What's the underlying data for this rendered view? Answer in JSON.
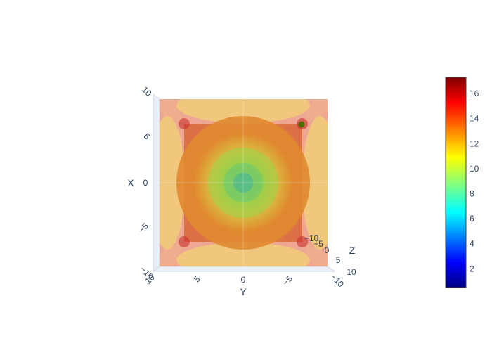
{
  "chart_data": {
    "type": "volume",
    "description_scene": "3D isosurface/volume view, camera looking along Y axis",
    "x_axis": {
      "title": "X",
      "ticks": [
        -10,
        -5,
        0,
        5,
        10
      ],
      "tick_labels": [
        "−10",
        "−5",
        "0",
        "5",
        "10"
      ],
      "range": [
        -10,
        10
      ]
    },
    "y_axis": {
      "title": "Y",
      "ticks": [
        10,
        5,
        0,
        -5,
        -10
      ],
      "tick_labels": [
        "10",
        "5",
        "0",
        "−5",
        "−10"
      ],
      "range": [
        -10,
        10
      ]
    },
    "z_axis": {
      "title": "Z",
      "ticks": [
        -10,
        -5,
        0,
        5,
        10
      ],
      "tick_labels": [
        "−10",
        "−5",
        "0",
        "5",
        "10"
      ],
      "range": [
        -10,
        10
      ]
    },
    "colorbar": {
      "colorscale": "Jet",
      "range": [
        0.5,
        17.3
      ],
      "ticks": [
        2,
        4,
        6,
        8,
        10,
        12,
        14,
        16
      ],
      "tick_labels": [
        "2",
        "4",
        "6",
        "8",
        "10",
        "12",
        "14",
        "16"
      ]
    },
    "marker_point": {
      "color": "#556b00"
    },
    "colors": {
      "center": "#5fc86a",
      "mid": "#e07a2a",
      "edge": "#e86a6a",
      "frame": "#e4ebf5"
    }
  }
}
